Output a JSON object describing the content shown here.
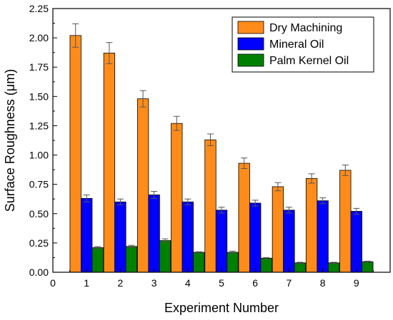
{
  "chart_data": {
    "type": "bar",
    "xlabel": "Experiment Number",
    "ylabel": "Surface Roughness (μm)",
    "xlim": [
      0,
      10
    ],
    "ylim": [
      0,
      2.25
    ],
    "x_ticks": [
      "0",
      "1",
      "2",
      "3",
      "4",
      "5",
      "6",
      "7",
      "8",
      "9"
    ],
    "y_ticks": [
      "0.00",
      "0.25",
      "0.50",
      "0.75",
      "1.00",
      "1.25",
      "1.50",
      "1.75",
      "2.00",
      "2.25"
    ],
    "categories": [
      "1",
      "2",
      "3",
      "4",
      "5",
      "6",
      "7",
      "8",
      "9"
    ],
    "legend_position": "top-right",
    "grid": false,
    "series": [
      {
        "name": "Dry Machining",
        "color": "#ff8c1a",
        "values": [
          2.02,
          1.87,
          1.48,
          1.27,
          1.13,
          0.93,
          0.73,
          0.8,
          0.87
        ],
        "errors": [
          0.1,
          0.09,
          0.07,
          0.06,
          0.05,
          0.045,
          0.035,
          0.04,
          0.045
        ]
      },
      {
        "name": "Mineral Oil",
        "color": "#0000ff",
        "values": [
          0.63,
          0.6,
          0.66,
          0.6,
          0.53,
          0.59,
          0.53,
          0.61,
          0.52
        ],
        "errors": [
          0.03,
          0.025,
          0.03,
          0.025,
          0.025,
          0.025,
          0.025,
          0.025,
          0.025
        ]
      },
      {
        "name": "Palm Kernel Oil",
        "color": "#008000",
        "values": [
          0.21,
          0.22,
          0.27,
          0.17,
          0.17,
          0.12,
          0.08,
          0.08,
          0.09
        ],
        "errors": [
          0.01,
          0.01,
          0.015,
          0.005,
          0.01,
          0.005,
          0.005,
          0.005,
          0.005
        ]
      }
    ]
  }
}
